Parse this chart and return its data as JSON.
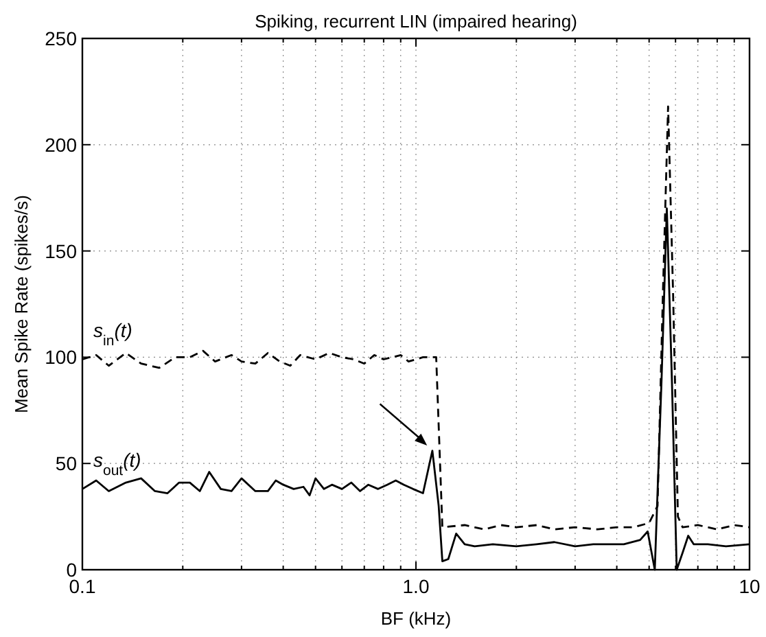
{
  "chart_data": {
    "type": "line",
    "title": "Spiking, recurrent LIN (impaired hearing)",
    "xlabel": "BF (kHz)",
    "ylabel": "Mean Spike Rate (spikes/s)",
    "log": "x",
    "xlim": [
      0.1,
      10
    ],
    "ylim": [
      0,
      250
    ],
    "xticks": [
      0.1,
      {
        "value": 0.2,
        "label": null
      },
      {
        "value": 0.3,
        "label": null
      },
      {
        "value": 0.4,
        "label": null
      },
      {
        "value": 0.5,
        "label": null
      },
      {
        "value": 0.6,
        "label": null
      },
      {
        "value": 0.7,
        "label": null
      },
      {
        "value": 0.8,
        "label": null
      },
      {
        "value": 0.9,
        "label": null
      },
      {
        "value": 1,
        "label": "1.0"
      },
      {
        "value": 2,
        "label": null
      },
      {
        "value": 3,
        "label": null
      },
      {
        "value": 4,
        "label": null
      },
      {
        "value": 5,
        "label": null
      },
      {
        "value": 6,
        "label": null
      },
      {
        "value": 7,
        "label": null
      },
      {
        "value": 8,
        "label": null
      },
      {
        "value": 9,
        "label": null
      },
      10
    ],
    "yticks": [
      0,
      50,
      100,
      150,
      200,
      250
    ],
    "grid": true,
    "series": [
      {
        "name": "s$_{in}$(t)",
        "color": "#000000",
        "line_style": "dashed",
        "x": [
          0.1,
          0.11,
          0.12,
          0.135,
          0.15,
          0.17,
          0.19,
          0.21,
          0.23,
          0.25,
          0.28,
          0.3,
          0.33,
          0.36,
          0.39,
          0.42,
          0.45,
          0.5,
          0.55,
          0.6,
          0.65,
          0.7,
          0.75,
          0.8,
          0.85,
          0.9,
          0.95,
          1.0,
          1.05,
          1.1,
          1.15,
          1.2,
          1.4,
          1.6,
          1.8,
          2.0,
          2.3,
          2.6,
          3.0,
          3.5,
          4.0,
          4.5,
          5.0,
          5.3,
          5.5,
          5.7,
          5.9,
          6.1,
          6.3,
          7,
          8,
          9,
          10
        ],
        "values": [
          99,
          101,
          96,
          102,
          97,
          95,
          100,
          100,
          103,
          98,
          101,
          98,
          97,
          102,
          98,
          96,
          101,
          99,
          102,
          100,
          99,
          97,
          101,
          99,
          100,
          101,
          98,
          99,
          100,
          100,
          100,
          20,
          21,
          19,
          21,
          20,
          21,
          19,
          20,
          19,
          20,
          20,
          22,
          30,
          130,
          218,
          130,
          25,
          20,
          21,
          19,
          21,
          20
        ]
      },
      {
        "name": "s$_{out}$(t)",
        "color": "#000000",
        "line_style": "solid",
        "x": [
          0.1,
          0.11,
          0.12,
          0.135,
          0.15,
          0.165,
          0.18,
          0.195,
          0.21,
          0.225,
          0.24,
          0.26,
          0.28,
          0.3,
          0.33,
          0.36,
          0.38,
          0.4,
          0.43,
          0.46,
          0.48,
          0.5,
          0.53,
          0.56,
          0.6,
          0.64,
          0.68,
          0.72,
          0.77,
          0.82,
          0.87,
          0.92,
          0.98,
          1.05,
          1.12,
          1.17,
          1.2,
          1.25,
          1.32,
          1.4,
          1.5,
          1.7,
          2.0,
          2.3,
          2.6,
          3.0,
          3.4,
          3.8,
          4.2,
          4.7,
          4.95,
          5.2,
          5.45,
          5.65,
          5.85,
          6.05,
          6.3,
          6.55,
          6.8,
          7.5,
          8.5,
          10
        ],
        "values": [
          38,
          42,
          37,
          41,
          43,
          37,
          36,
          41,
          41,
          37,
          46,
          38,
          37,
          43,
          37,
          37,
          42,
          40,
          38,
          39,
          35,
          43,
          38,
          40,
          38,
          41,
          37,
          40,
          38,
          40,
          42,
          40,
          38,
          36,
          56,
          30,
          4,
          5,
          17,
          12,
          11,
          12,
          11,
          12,
          13,
          11,
          12,
          12,
          12,
          14,
          18,
          0,
          90,
          170,
          90,
          0,
          8,
          16,
          12,
          12,
          11,
          12
        ]
      }
    ]
  }
}
